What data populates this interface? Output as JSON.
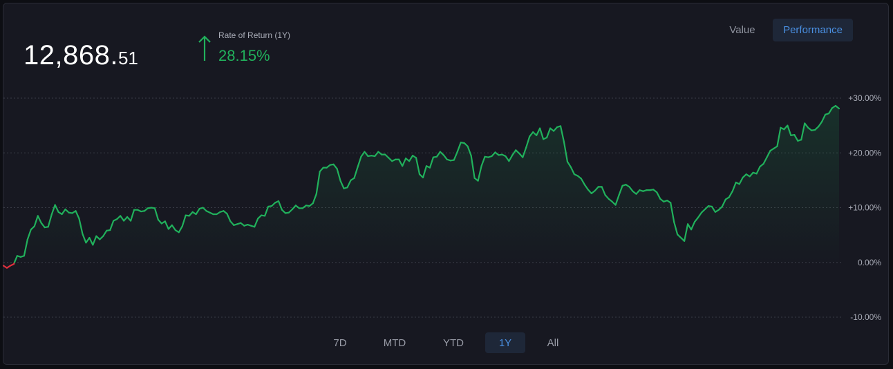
{
  "header": {
    "balance_integer": "12,868.",
    "balance_decimal": "51",
    "ror_label": "Rate of Return (1Y)",
    "ror_value": "28.15%"
  },
  "view_toggle": {
    "value_label": "Value",
    "performance_label": "Performance",
    "active": "performance"
  },
  "ranges": {
    "items": [
      "7D",
      "MTD",
      "YTD",
      "1Y",
      "All"
    ],
    "active": "1Y"
  },
  "colors": {
    "background": "#171821",
    "positive": "#21b15c",
    "negative": "#e0303d",
    "grid": "#3a3c47",
    "accent": "#4a90e2"
  },
  "chart_data": {
    "type": "line",
    "ylim": [
      -10,
      30
    ],
    "yticks": [
      "+30.00%",
      "+20.00%",
      "+10.00%",
      "0.00%",
      "-10.00%"
    ],
    "ytick_values": [
      30,
      20,
      10,
      0,
      -10
    ],
    "grid": true,
    "fill": "area-under-line",
    "series": [
      {
        "values": [
          -0.6,
          -1.0,
          -0.6,
          -0.3,
          1.2,
          1.0,
          1.2,
          4.2,
          6.0,
          6.6,
          8.5,
          7.2,
          6.4,
          6.5,
          8.7,
          10.5,
          9.2,
          8.8,
          9.7,
          9.1,
          9.0,
          9.4,
          8.0,
          5.2,
          3.6,
          4.5,
          3.2,
          4.8,
          4.2,
          4.8,
          5.8,
          5.9,
          7.6,
          7.9,
          8.5,
          7.6,
          8.3,
          7.6,
          9.6,
          9.6,
          9.3,
          9.4,
          9.9,
          10.0,
          9.9,
          7.8,
          7.1,
          7.5,
          6.1,
          6.8,
          5.9,
          5.5,
          6.6,
          8.6,
          8.5,
          9.2,
          8.8,
          9.8,
          10.0,
          9.4,
          9.1,
          8.8,
          8.8,
          9.2,
          9.4,
          8.9,
          7.5,
          6.8,
          7.0,
          7.2,
          6.7,
          6.9,
          6.7,
          6.5,
          8.0,
          8.6,
          8.5,
          10.2,
          10.3,
          10.9,
          11.2,
          9.6,
          9.0,
          9.1,
          9.7,
          10.4,
          9.9,
          9.9,
          10.4,
          10.3,
          10.8,
          12.5,
          16.6,
          17.3,
          17.3,
          17.8,
          17.9,
          17.1,
          14.9,
          13.5,
          13.7,
          15.0,
          15.4,
          17.4,
          19.3,
          20.2,
          19.4,
          19.5,
          19.4,
          20.2,
          19.7,
          19.7,
          19.1,
          18.5,
          18.8,
          18.8,
          17.6,
          19.0,
          18.5,
          19.5,
          19.1,
          16.1,
          15.5,
          17.6,
          17.3,
          19.2,
          19.3,
          20.2,
          19.6,
          18.8,
          18.6,
          18.7,
          20.2,
          21.9,
          21.8,
          21.2,
          19.5,
          15.4,
          14.9,
          17.6,
          19.3,
          19.2,
          19.4,
          20.1,
          19.6,
          19.7,
          19.4,
          18.5,
          19.6,
          20.5,
          19.9,
          19.2,
          21.0,
          23.0,
          23.8,
          23.2,
          24.5,
          22.5,
          22.8,
          24.5,
          24.0,
          24.7,
          24.9,
          22.0,
          18.4,
          17.4,
          16.1,
          15.8,
          15.3,
          14.2,
          13.3,
          12.6,
          13.1,
          13.8,
          13.8,
          12.3,
          11.6,
          11.1,
          10.5,
          12.3,
          14.0,
          14.2,
          13.8,
          13.0,
          12.5,
          13.2,
          13.0,
          13.2,
          13.2,
          13.3,
          12.8,
          11.6,
          11.1,
          11.3,
          10.9,
          7.4,
          5.1,
          4.5,
          3.9,
          7.0,
          6.0,
          7.4,
          8.2,
          9.1,
          9.7,
          10.3,
          10.2,
          9.2,
          9.6,
          10.2,
          11.5,
          11.9,
          13.0,
          14.6,
          14.3,
          15.5,
          16.1,
          15.7,
          16.4,
          16.2,
          17.5,
          18.0,
          19.2,
          20.4,
          20.8,
          21.2,
          24.6,
          24.3,
          25.0,
          23.2,
          23.3,
          22.2,
          22.4,
          25.4,
          24.6,
          24.1,
          24.2,
          24.8,
          25.7,
          27.0,
          27.2,
          28.2,
          28.6,
          28.1
        ]
      }
    ]
  }
}
